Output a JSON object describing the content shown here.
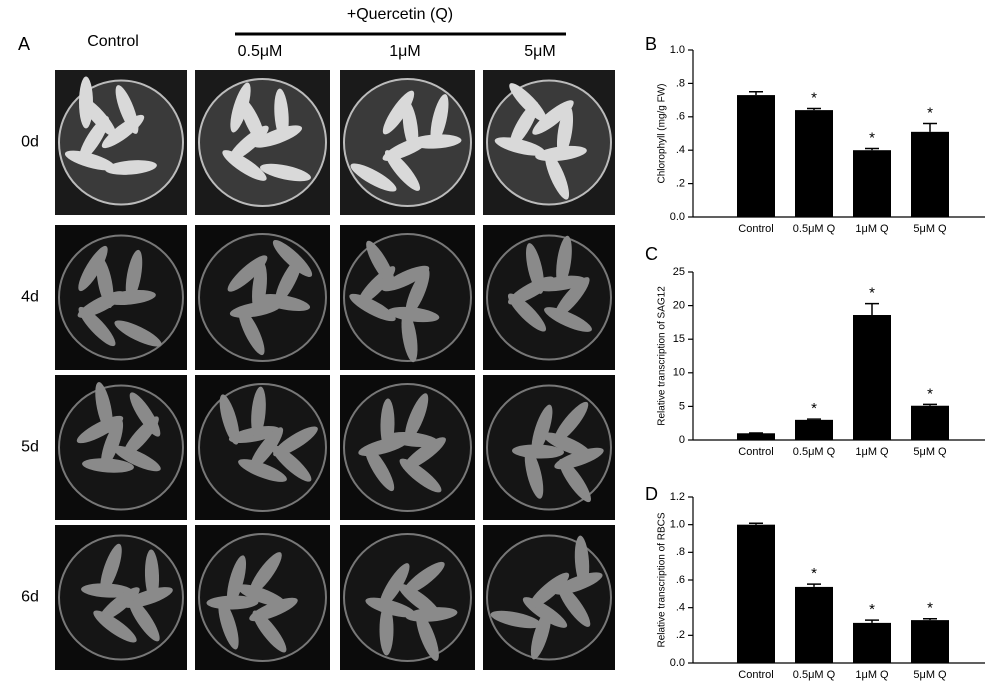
{
  "panel_a": {
    "label": "A",
    "control": "Control",
    "treatment": "+Quercetin (Q)",
    "doses": [
      "0.5μM",
      "1μM",
      "5μM"
    ],
    "days": [
      "0d",
      "4d",
      "5d",
      "6d"
    ]
  },
  "chart_data": [
    {
      "type": "bar",
      "panel": "B",
      "ylabel": "Chlorophyll  (mg/g FW)",
      "categories": [
        "Control",
        "0.5μM Q",
        "1μM Q",
        "5μM Q"
      ],
      "values": [
        0.73,
        0.64,
        0.4,
        0.51
      ],
      "errors": [
        0.02,
        0.01,
        0.01,
        0.05
      ],
      "markers": [
        null,
        "*",
        "*",
        "*"
      ],
      "color": "#000000",
      "ylim": [
        0,
        1.0
      ],
      "yticks": [
        {
          "value": 0,
          "label": "0.0"
        },
        {
          "value": 0.2,
          "label": ".2"
        },
        {
          "value": 0.4,
          "label": ".4"
        },
        {
          "value": 0.6,
          "label": ".6"
        },
        {
          "value": 0.8,
          "label": ".8"
        },
        {
          "value": 1.0,
          "label": "1.0"
        }
      ]
    },
    {
      "type": "bar",
      "panel": "C",
      "ylabel": "Relative transcription of SAG12",
      "categories": [
        "Control",
        "0.5μM Q",
        "1μM Q",
        "5μM Q"
      ],
      "values": [
        1.0,
        3.0,
        18.6,
        5.1
      ],
      "errors": [
        0.05,
        0.1,
        1.7,
        0.2
      ],
      "markers": [
        null,
        "*",
        "*",
        "*"
      ],
      "color": "#000000",
      "ylim": [
        0,
        25
      ],
      "yticks": [
        0,
        5,
        10,
        15,
        20,
        25
      ]
    },
    {
      "type": "bar",
      "panel": "D",
      "ylabel": "Relative transcription of RBCS",
      "categories": [
        "Control",
        "0.5μM Q",
        "1μM Q",
        "5μM Q"
      ],
      "values": [
        1.0,
        0.55,
        0.29,
        0.31
      ],
      "errors": [
        0.01,
        0.02,
        0.02,
        0.01
      ],
      "markers": [
        null,
        "*",
        "*",
        "*"
      ],
      "color": "#000000",
      "ylim": [
        0,
        1.2
      ],
      "yticks": [
        {
          "value": 0,
          "label": "0.0"
        },
        {
          "value": 0.2,
          "label": ".2"
        },
        {
          "value": 0.4,
          "label": ".4"
        },
        {
          "value": 0.6,
          "label": ".6"
        },
        {
          "value": 0.8,
          "label": ".8"
        },
        {
          "value": 1.0,
          "label": "1.0"
        },
        {
          "value": 1.2,
          "label": "1.2"
        }
      ]
    }
  ]
}
